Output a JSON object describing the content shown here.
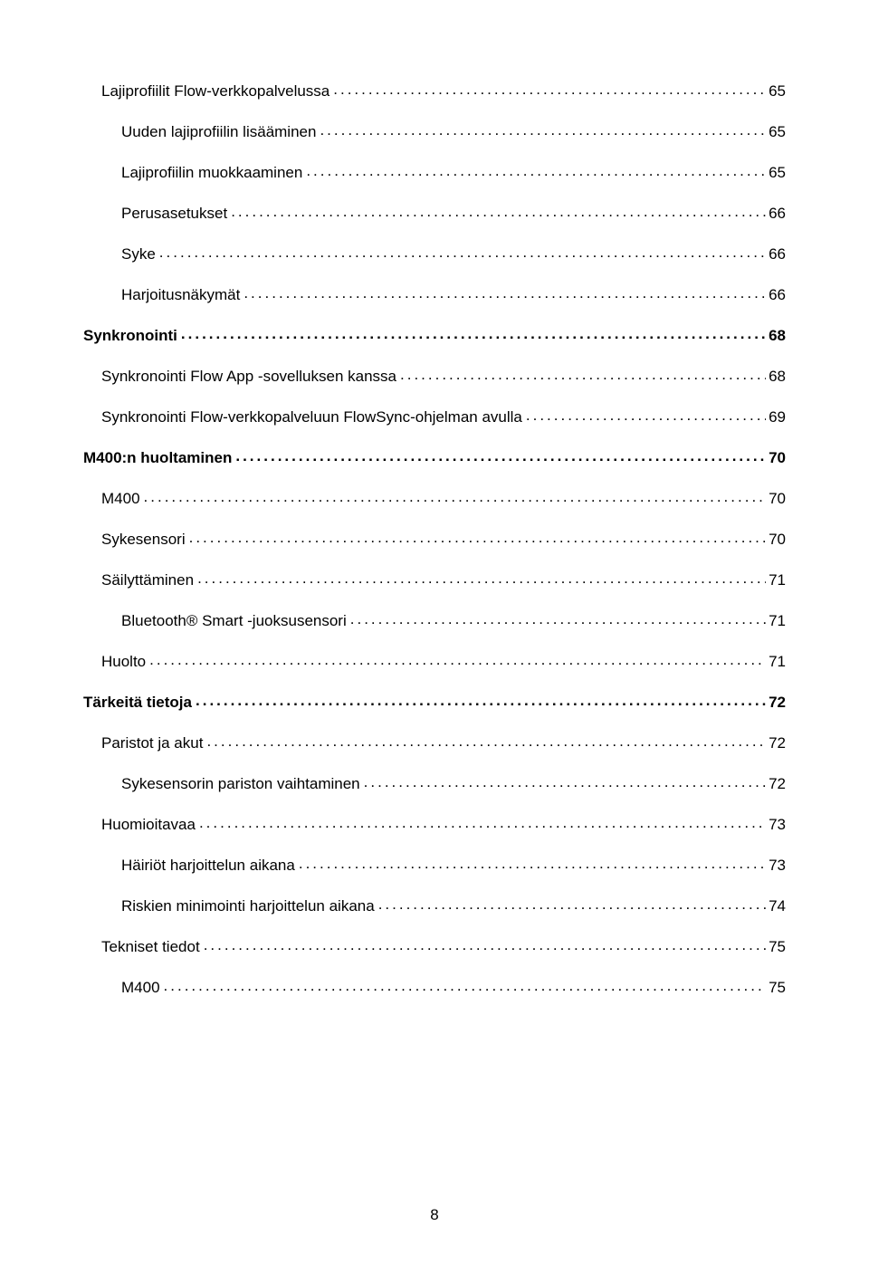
{
  "toc": [
    {
      "label": "Lajiprofiilit Flow-verkkopalvelussa",
      "page": "65",
      "level": 1
    },
    {
      "label": "Uuden lajiprofiilin lisääminen",
      "page": "65",
      "level": 2
    },
    {
      "label": "Lajiprofiilin muokkaaminen",
      "page": "65",
      "level": 2
    },
    {
      "label": "Perusasetukset",
      "page": "66",
      "level": 2
    },
    {
      "label": "Syke",
      "page": "66",
      "level": 2
    },
    {
      "label": "Harjoitusnäkymät",
      "page": "66",
      "level": 2
    },
    {
      "label": "Synkronointi",
      "page": "68",
      "level": 0
    },
    {
      "label": "Synkronointi Flow App -sovelluksen kanssa",
      "page": "68",
      "level": 1
    },
    {
      "label": "Synkronointi Flow-verkkopalveluun FlowSync-ohjelman avulla",
      "page": "69",
      "level": 1
    },
    {
      "label": "M400:n huoltaminen",
      "page": "70",
      "level": 0
    },
    {
      "label": "M400",
      "page": "70",
      "level": 1
    },
    {
      "label": "Sykesensori",
      "page": "70",
      "level": 1
    },
    {
      "label": "Säilyttäminen",
      "page": "71",
      "level": 1
    },
    {
      "label": "Bluetooth® Smart -juoksusensori",
      "page": "71",
      "level": 2
    },
    {
      "label": "Huolto",
      "page": "71",
      "level": 1
    },
    {
      "label": "Tärkeitä tietoja",
      "page": "72",
      "level": 0
    },
    {
      "label": "Paristot ja akut",
      "page": "72",
      "level": 1
    },
    {
      "label": "Sykesensorin pariston vaihtaminen",
      "page": "72",
      "level": 2
    },
    {
      "label": "Huomioitavaa",
      "page": "73",
      "level": 1
    },
    {
      "label": "Häiriöt harjoittelun aikana",
      "page": "73",
      "level": 2
    },
    {
      "label": "Riskien minimointi harjoittelun aikana",
      "page": "74",
      "level": 2
    },
    {
      "label": "Tekniset tiedot",
      "page": "75",
      "level": 1
    },
    {
      "label": "M400",
      "page": "75",
      "level": 2
    }
  ],
  "page_number": "8",
  "colors": {
    "text": "#000000",
    "background": "#ffffff"
  },
  "typography": {
    "font_family": "Arial",
    "base_fontsize": 17,
    "bold_weight": 700
  }
}
